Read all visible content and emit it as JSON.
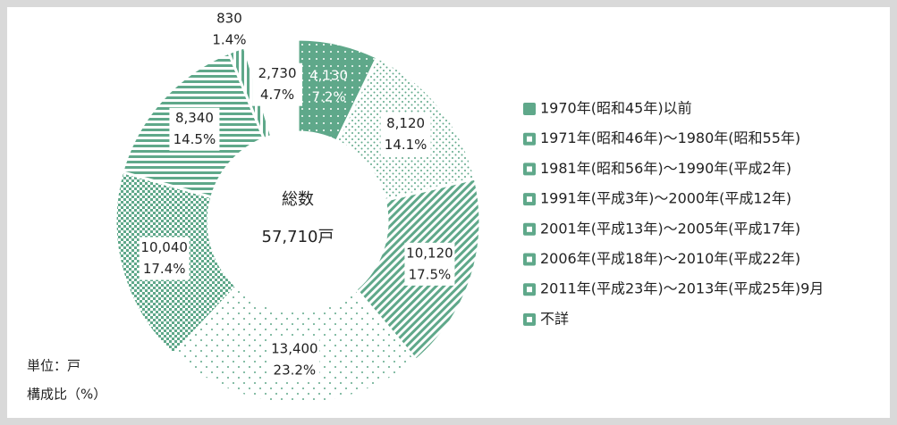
{
  "chart_data": {
    "type": "donut",
    "categories": [
      "1970年(昭和45年)以前",
      "1971年(昭和46年)～1980年(昭和55年)",
      "1981年(昭和56年)～1990年(平成2年)",
      "1991年(平成3年)～2000年(平成12年)",
      "2001年(平成13年)～2005年(平成17年)",
      "2006年(平成18年)～2010年(平成22年)",
      "2011年(平成23年)～2013年(平成25年)9月",
      "不詳"
    ],
    "values": [
      4130,
      8120,
      10120,
      13400,
      10040,
      8340,
      830,
      2730
    ],
    "value_labels": [
      "4,130",
      "8,120",
      "10,120",
      "13,400",
      "10,040",
      "8,340",
      "830",
      "2,730"
    ],
    "percentages": [
      7.2,
      14.1,
      17.5,
      23.2,
      17.4,
      14.5,
      1.4,
      4.7
    ],
    "percentage_labels": [
      "7.2%",
      "14.1%",
      "17.5%",
      "23.2%",
      "17.4%",
      "14.5%",
      "1.4%",
      "4.7%"
    ],
    "center_title": "総数",
    "center_total": 57710,
    "center_total_label": "57,710戸",
    "notes": [
      "単位：戸",
      "構成比（%）"
    ],
    "color": "#5fa88a",
    "legend": "right"
  }
}
